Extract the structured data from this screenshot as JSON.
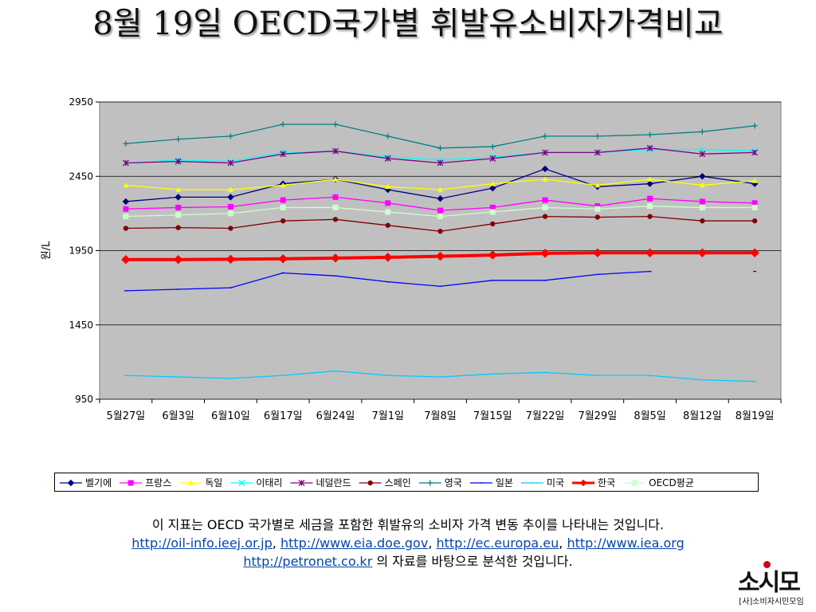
{
  "title": "8월 19일 OECD국가별 휘발유소비자가격비교",
  "caption": {
    "line1": "이 지표는 OECD 국가별로 세금을 포함한 휘발유의 소비자 가격 변동 추이를 나타내는 것입니다.",
    "links": [
      "http://oil-info.ieej.or.jp",
      "http://www.eia.doe.gov",
      "http://ec.europa.eu",
      "http://www.iea.org",
      "http://petronet.co.kr"
    ],
    "sep": ", ",
    "line3_suffix": " 의 자료를 바탕으로 분석한 것입니다."
  },
  "logo": {
    "main": "소시모",
    "sub": "[사]소비자시민모임",
    "dot_color": "#d0021b"
  },
  "chart_data": {
    "type": "line",
    "ylabel": "원/L",
    "ylim": [
      950,
      2950
    ],
    "yticks": [
      950,
      1450,
      1950,
      2450,
      2950
    ],
    "grid": "horizontal",
    "plot_background": "#c0c0c0",
    "legend_position": "bottom",
    "categories": [
      "5월27일",
      "6월3일",
      "6월10일",
      "6월17일",
      "6월24일",
      "7월1일",
      "7월8일",
      "7월15일",
      "7월22일",
      "7월29일",
      "8월5일",
      "8월12일",
      "8월19일"
    ],
    "series": [
      {
        "name": "벨기에",
        "color": "#000080",
        "marker": "diamond",
        "values": [
          2280,
          2310,
          2310,
          2400,
          2430,
          2360,
          2300,
          2370,
          2500,
          2380,
          2400,
          2450,
          2400
        ]
      },
      {
        "name": "프랑스",
        "color": "#ff00ff",
        "marker": "square",
        "values": [
          2230,
          2240,
          2245,
          2290,
          2310,
          2270,
          2220,
          2240,
          2290,
          2250,
          2300,
          2280,
          2270
        ]
      },
      {
        "name": "독일",
        "color": "#ffff00",
        "marker": "triangle",
        "values": [
          2390,
          2360,
          2360,
          2390,
          2430,
          2380,
          2360,
          2400,
          2430,
          2390,
          2430,
          2390,
          2420
        ]
      },
      {
        "name": "이태리",
        "color": "#00ffff",
        "marker": "x",
        "values": [
          2540,
          2560,
          2550,
          2610,
          2620,
          2580,
          2560,
          2580,
          2610,
          2610,
          2630,
          2630,
          2620
        ]
      },
      {
        "name": "네덜란드",
        "color": "#800080",
        "marker": "star",
        "values": [
          2540,
          2550,
          2540,
          2600,
          2620,
          2570,
          2540,
          2570,
          2610,
          2610,
          2640,
          2600,
          2610
        ]
      },
      {
        "name": "스페인",
        "color": "#800000",
        "marker": "circle",
        "values": [
          2100,
          2105,
          2100,
          2150,
          2160,
          2120,
          2080,
          2130,
          2180,
          2175,
          2180,
          2150,
          2150
        ]
      },
      {
        "name": "영국",
        "color": "#008080",
        "marker": "plus",
        "values": [
          2670,
          2700,
          2720,
          2800,
          2800,
          2720,
          2640,
          2650,
          2720,
          2720,
          2730,
          2750,
          2790
        ]
      },
      {
        "name": "일본",
        "color": "#0000ff",
        "marker": "dash",
        "values": [
          1680,
          1690,
          1700,
          1800,
          1780,
          1740,
          1710,
          1750,
          1750,
          1790,
          1810,
          null,
          1810
        ]
      },
      {
        "name": "미국",
        "color": "#00ccff",
        "marker": "dash",
        "values": [
          1110,
          1100,
          1090,
          1110,
          1140,
          1110,
          1100,
          1120,
          1130,
          1110,
          1110,
          1080,
          1070
        ]
      },
      {
        "name": "한국",
        "color": "#ff0000",
        "marker": "diamond",
        "thick": true,
        "values": [
          1890,
          1890,
          1892,
          1895,
          1900,
          1905,
          1912,
          1920,
          1932,
          1935,
          1935,
          1935,
          1935
        ]
      },
      {
        "name": "OECD평균",
        "color": "#ccffcc",
        "marker": "square",
        "values": [
          2180,
          2190,
          2200,
          2240,
          2240,
          2210,
          2180,
          2210,
          2240,
          2230,
          2250,
          2240,
          2240
        ]
      }
    ]
  }
}
